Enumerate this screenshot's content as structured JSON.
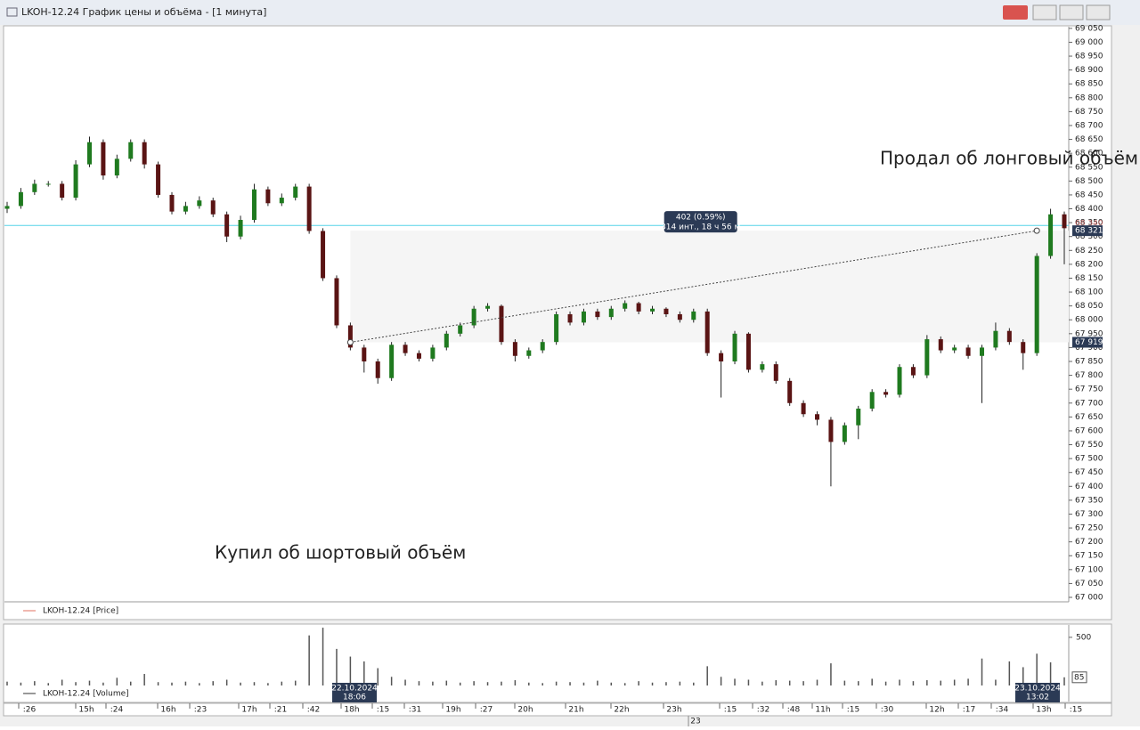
{
  "window": {
    "title": "LKOH-12.24 График цены и объёма - [1 минута]"
  },
  "chart_data": [
    {
      "type": "candlestick",
      "legend": "LKOH-12.24 [Price]",
      "legend_color": "#e07060",
      "up_color": "#1f7a1f",
      "down_color": "#5a1414",
      "wick_color": "#222222",
      "annotations": [
        "Продал об лонговый объём",
        "Купил об шортовый объём"
      ],
      "ylim": [
        66984,
        69056
      ],
      "yticks": [
        {
          "value": 67000,
          "label": "67 000"
        },
        {
          "value": 67050,
          "label": "67 050"
        },
        {
          "value": 67100,
          "label": "67 100"
        },
        {
          "value": 67150,
          "label": "67 150"
        },
        {
          "value": 67200,
          "label": "67 200"
        },
        {
          "value": 67250,
          "label": "67 250"
        },
        {
          "value": 67300,
          "label": "67 300"
        },
        {
          "value": 67350,
          "label": "67 350"
        },
        {
          "value": 67400,
          "label": "67 400"
        },
        {
          "value": 67450,
          "label": "67 450"
        },
        {
          "value": 67500,
          "label": "67 500"
        },
        {
          "value": 67550,
          "label": "67 550"
        },
        {
          "value": 67600,
          "label": "67 600"
        },
        {
          "value": 67650,
          "label": "67 650"
        },
        {
          "value": 67700,
          "label": "67 700"
        },
        {
          "value": 67750,
          "label": "67 750"
        },
        {
          "value": 67800,
          "label": "67 800"
        },
        {
          "value": 67850,
          "label": "67 850"
        },
        {
          "value": 67900,
          "label": "67 900"
        },
        {
          "value": 67950,
          "label": "67 950"
        },
        {
          "value": 68000,
          "label": "68 000"
        },
        {
          "value": 68050,
          "label": "68 050"
        },
        {
          "value": 68100,
          "label": "68 100"
        },
        {
          "value": 68150,
          "label": "68 150"
        },
        {
          "value": 68200,
          "label": "68 200"
        },
        {
          "value": 68250,
          "label": "68 250"
        },
        {
          "value": 68300,
          "label": "68 300"
        },
        {
          "value": 68350,
          "label": "68 350"
        },
        {
          "value": 68400,
          "label": "68 400"
        },
        {
          "value": 68450,
          "label": "68 450"
        },
        {
          "value": 68500,
          "label": "68 500"
        },
        {
          "value": 68550,
          "label": "68 550"
        },
        {
          "value": 68600,
          "label": "68 600"
        },
        {
          "value": 68650,
          "label": "68 650"
        },
        {
          "value": 68700,
          "label": "68 700"
        },
        {
          "value": 68750,
          "label": "68 750"
        },
        {
          "value": 68800,
          "label": "68 800"
        },
        {
          "value": 68850,
          "label": "68 850"
        },
        {
          "value": 68900,
          "label": "68 900"
        },
        {
          "value": 68950,
          "label": "68 950"
        },
        {
          "value": 69000,
          "label": "69 000"
        },
        {
          "value": 69050,
          "label": "69 050"
        }
      ],
      "open": [
        68400,
        68410,
        68460,
        68490,
        68490,
        68440,
        68560,
        68640,
        68520,
        68580,
        68640,
        68560,
        68450,
        68390,
        68410,
        68430,
        68380,
        68300,
        68360,
        68470,
        68420,
        68440,
        68480,
        68320,
        68150,
        67980,
        67900,
        67850,
        67790,
        67910,
        67880,
        67860,
        67900,
        67950,
        67980,
        68040,
        68050,
        67920,
        67870,
        67890,
        67920,
        68020,
        67990,
        68030,
        68010,
        68040,
        68060,
        68030,
        68040,
        68020,
        68000,
        68030,
        67880,
        67850,
        67950,
        67820,
        67840,
        67780,
        67700,
        67660,
        67640,
        67560,
        67620,
        67680,
        67740,
        67730,
        67830,
        67800,
        67930,
        67890,
        67900,
        67870,
        67900,
        67960,
        67920,
        67880,
        68230,
        68380
      ],
      "high": [
        68425,
        68475,
        68505,
        68500,
        68500,
        68575,
        68660,
        68650,
        68595,
        68650,
        68650,
        68570,
        68460,
        68425,
        68445,
        68440,
        68390,
        68375,
        68490,
        68480,
        68455,
        68490,
        68490,
        68330,
        68160,
        67990,
        67910,
        67860,
        67920,
        67920,
        67890,
        67910,
        67960,
        67990,
        68050,
        68060,
        68055,
        67930,
        67900,
        67930,
        68030,
        68030,
        68040,
        68040,
        68050,
        68070,
        68065,
        68050,
        68045,
        68030,
        68040,
        68040,
        67890,
        67960,
        67955,
        67850,
        67850,
        67790,
        67710,
        67670,
        67650,
        67630,
        67690,
        67750,
        67750,
        67840,
        67840,
        67945,
        67940,
        67910,
        67910,
        67910,
        67990,
        67970,
        67930,
        68240,
        68400,
        68390
      ],
      "low": [
        68385,
        68400,
        68450,
        68480,
        68430,
        68430,
        68550,
        68505,
        68510,
        68570,
        68545,
        68440,
        68380,
        68380,
        68400,
        68370,
        68280,
        68290,
        68350,
        68410,
        68410,
        68430,
        68310,
        68140,
        67970,
        67890,
        67810,
        67770,
        67780,
        67870,
        67850,
        67850,
        67890,
        67940,
        67970,
        68030,
        67910,
        67850,
        67860,
        67880,
        67910,
        67980,
        67980,
        68000,
        68000,
        68030,
        68020,
        68020,
        68010,
        67990,
        67990,
        67870,
        67720,
        67840,
        67810,
        67810,
        67770,
        67690,
        67650,
        67620,
        67400,
        67550,
        67570,
        67670,
        67720,
        67720,
        67790,
        67790,
        67880,
        67880,
        67860,
        67700,
        67890,
        67910,
        67820,
        67870,
        68220,
        68200
      ],
      "close": [
        68410,
        68460,
        68490,
        68490,
        68440,
        68560,
        68640,
        68520,
        68580,
        68640,
        68560,
        68450,
        68390,
        68410,
        68430,
        68380,
        68300,
        68360,
        68470,
        68420,
        68440,
        68480,
        68320,
        68150,
        67980,
        67900,
        67850,
        67790,
        67910,
        67880,
        67860,
        67900,
        67950,
        67980,
        68040,
        68050,
        67920,
        67870,
        67890,
        67920,
        68020,
        67990,
        68030,
        68010,
        68040,
        68060,
        68030,
        68040,
        68020,
        68000,
        68030,
        67880,
        67850,
        67950,
        67820,
        67840,
        67780,
        67700,
        67660,
        67640,
        67560,
        67620,
        67680,
        67740,
        67730,
        67830,
        67800,
        67930,
        67890,
        67900,
        67870,
        67900,
        67960,
        67920,
        67880,
        68230,
        68380,
        68330
      ],
      "price_line": {
        "value": 68340,
        "label": "68 340",
        "color": "#56d4e8"
      },
      "markers": [
        {
          "value": 68321,
          "label": "68 321"
        },
        {
          "value": 67919,
          "label": "67 919"
        }
      ],
      "measure": {
        "from": 67919,
        "to": 68321,
        "text": "402 (0.59%)",
        "subtext": "314 инт., 18 ч 56 м"
      }
    },
    {
      "type": "bar",
      "legend": "LKOH-12.24 [Volume]",
      "legend_color": "#333333",
      "color": "#555555",
      "ylim": [
        0,
        610
      ],
      "yticks": [
        500
      ],
      "values": [
        40,
        30,
        45,
        25,
        60,
        35,
        50,
        30,
        80,
        40,
        120,
        35,
        30,
        40,
        25,
        45,
        60,
        30,
        35,
        25,
        40,
        50,
        520,
        600,
        380,
        300,
        250,
        180,
        90,
        60,
        45,
        40,
        50,
        30,
        45,
        35,
        40,
        55,
        30,
        25,
        40,
        35,
        30,
        50,
        30,
        25,
        45,
        30,
        35,
        40,
        30,
        200,
        90,
        70,
        60,
        40,
        55,
        50,
        45,
        60,
        230,
        50,
        45,
        70,
        40,
        60,
        45,
        55,
        50,
        60,
        70,
        280,
        60,
        250,
        190,
        330,
        240,
        85
      ],
      "last_value": 85
    }
  ],
  "time_axis": {
    "labels": [
      ":26",
      "15h",
      ":24",
      "16h",
      ":23",
      "17h",
      ":21",
      ":42",
      "18h",
      ":15",
      ":31",
      "19h",
      ":27",
      "20h",
      "21h",
      "22h",
      "23h",
      ":15",
      ":32",
      ":48",
      "11h",
      ":15",
      ":30",
      "12h",
      ":17",
      ":34",
      "13h",
      ":15"
    ],
    "day": "23",
    "cursor_dates": [
      "22.10.2024",
      "18:06",
      "23.10.2024",
      "13:02"
    ]
  }
}
